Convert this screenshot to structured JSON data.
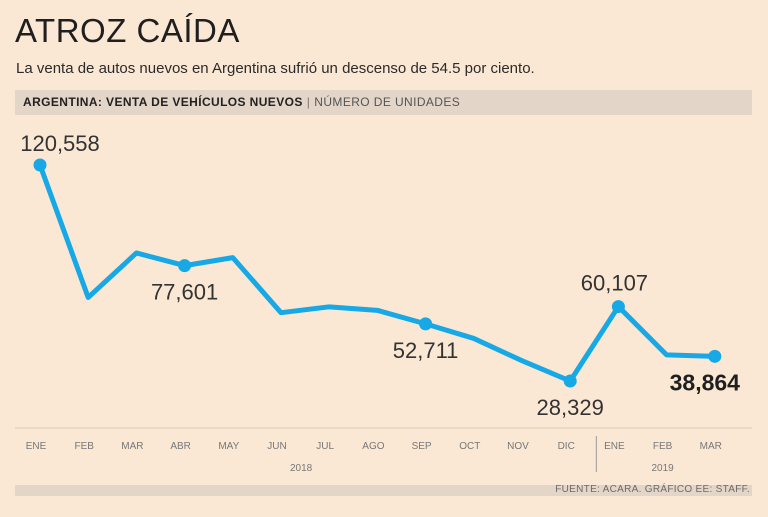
{
  "title": "ATROZ CAÍDA",
  "subtitle": "La venta de autos nuevos en Argentina sufrió un descenso de 54.5 por ciento.",
  "header": {
    "label": "ARGENTINA: VENTA DE VEHÍCULOS NUEVOS",
    "unit": "NÚMERO DE UNIDADES"
  },
  "source": "FUENTE: ACARA. GRÁFICO EE: STAFF.",
  "colors": {
    "line": "#17a8e6",
    "background": "#fbe8d4",
    "band": "#e3d5c8"
  },
  "chart_data": {
    "type": "line",
    "title": "ATROZ CAÍDA",
    "subtitle": "La venta de autos nuevos en Argentina sufrió un descenso de 54.5 por ciento.",
    "categories": [
      "ENE",
      "FEB",
      "MAR",
      "ABR",
      "MAY",
      "JUN",
      "JUL",
      "AGO",
      "SEP",
      "OCT",
      "NOV",
      "DIC",
      "ENE",
      "FEB",
      "MAR"
    ],
    "years": [
      {
        "label": "2018",
        "from": 0,
        "to": 11
      },
      {
        "label": "2019",
        "from": 12,
        "to": 14
      }
    ],
    "values": [
      120558,
      64000,
      83000,
      77601,
      81000,
      57500,
      60000,
      58500,
      52711,
      46500,
      37000,
      28329,
      60107,
      39500,
      38864
    ],
    "labels": [
      {
        "index": 0,
        "text": "120,558",
        "bold": false
      },
      {
        "index": 3,
        "text": "77,601",
        "bold": false
      },
      {
        "index": 8,
        "text": "52,711",
        "bold": false
      },
      {
        "index": 11,
        "text": "28,329",
        "bold": false
      },
      {
        "index": 12,
        "text": "60,107",
        "bold": false
      },
      {
        "index": 14,
        "text": "38,864",
        "bold": true
      }
    ],
    "marker_indices": [
      0,
      3,
      8,
      11,
      12,
      14
    ],
    "ylim": [
      0,
      140000
    ],
    "grid": false,
    "legend": "none"
  }
}
